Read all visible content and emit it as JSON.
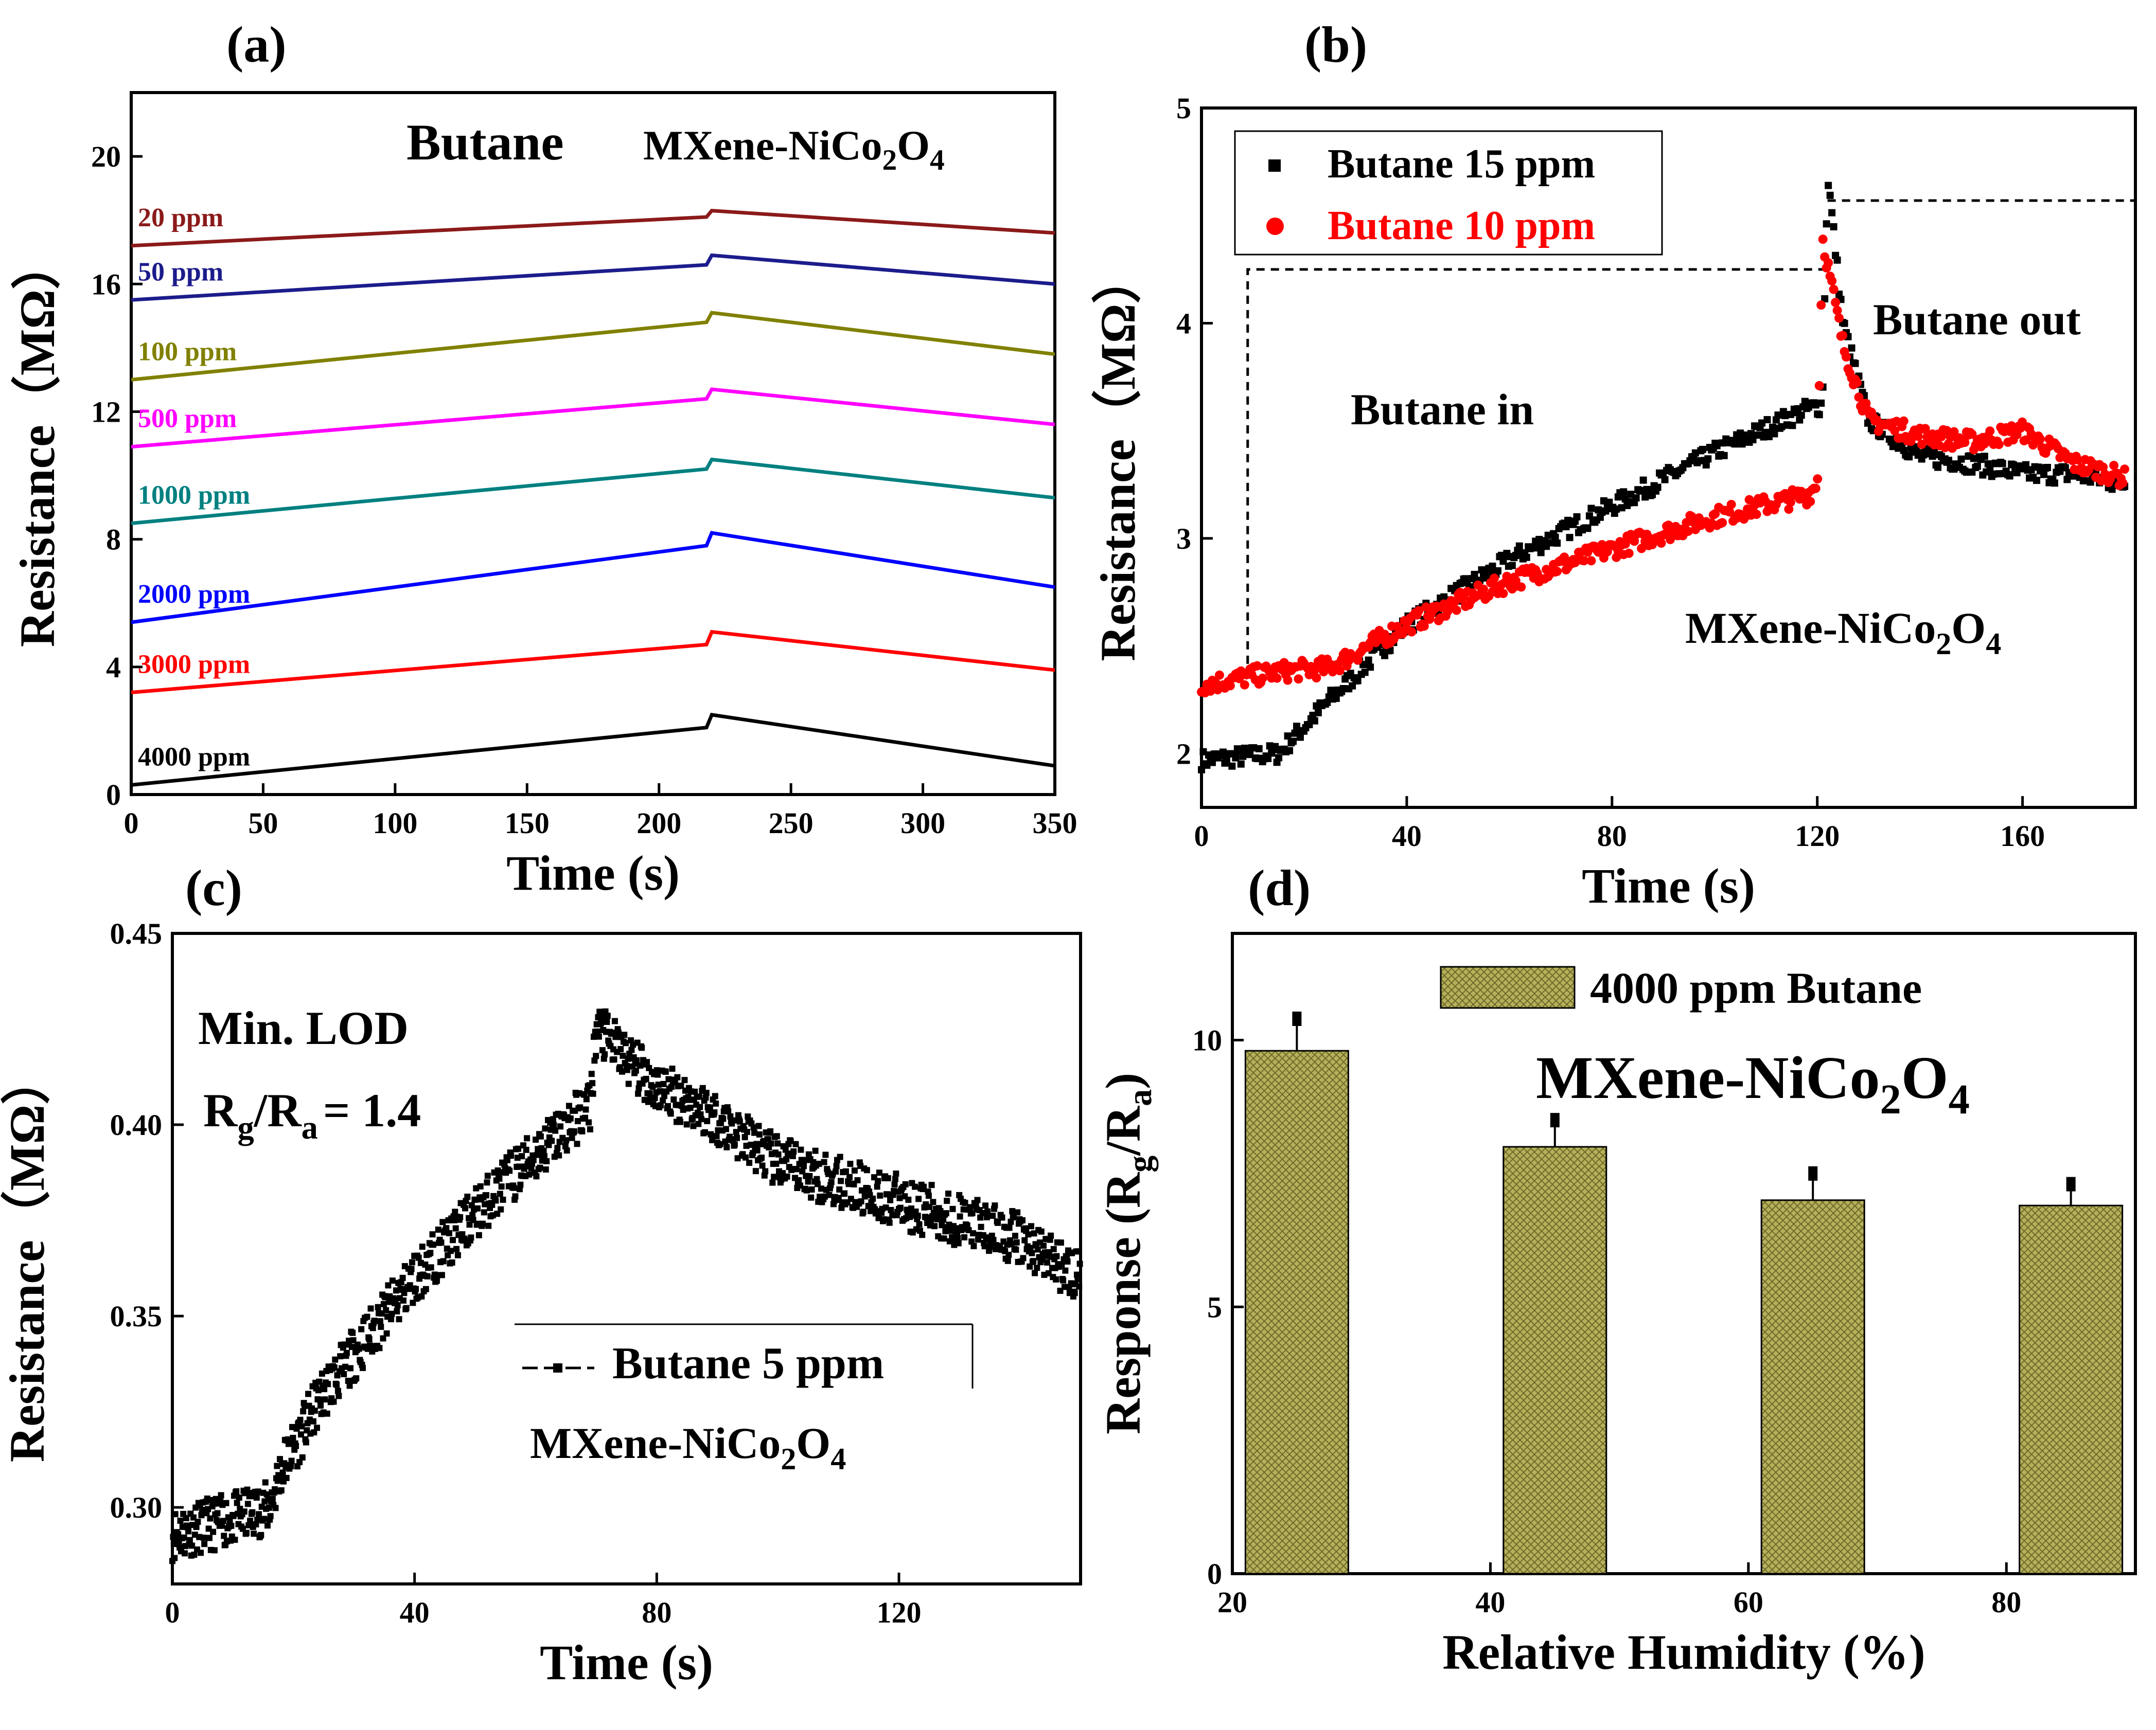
{
  "chart_data": [
    {
      "id": "a",
      "panel_label": "(a)",
      "type": "line",
      "title": "Butane",
      "material": "MXene-NiCo2O4",
      "xlabel": "Time (s)",
      "ylabel": "Resistance（MΩ）",
      "xlim": [
        0,
        350
      ],
      "ylim": [
        0,
        22
      ],
      "xticks": [
        0,
        50,
        100,
        150,
        200,
        250,
        300,
        350
      ],
      "yticks": [
        0,
        4,
        8,
        12,
        16,
        20
      ],
      "series": [
        {
          "name": "20 ppm",
          "color": "#8b1a1a",
          "x": [
            0,
            218,
            220,
            350
          ],
          "y": [
            17.2,
            18.1,
            18.3,
            17.6
          ]
        },
        {
          "name": "50 ppm",
          "color": "#1c1c8c",
          "x": [
            0,
            218,
            220,
            350
          ],
          "y": [
            15.5,
            16.6,
            16.9,
            16.0
          ]
        },
        {
          "name": "100 ppm",
          "color": "#808000",
          "x": [
            0,
            218,
            220,
            350
          ],
          "y": [
            13.0,
            14.8,
            15.1,
            13.8
          ]
        },
        {
          "name": "500 ppm",
          "color": "#ff00ff",
          "x": [
            0,
            218,
            220,
            350
          ],
          "y": [
            10.9,
            12.4,
            12.7,
            11.6
          ]
        },
        {
          "name": "1000 ppm",
          "color": "#008080",
          "x": [
            0,
            218,
            220,
            350
          ],
          "y": [
            8.5,
            10.2,
            10.5,
            9.3
          ]
        },
        {
          "name": "2000 ppm",
          "color": "#0000ff",
          "x": [
            0,
            218,
            220,
            350
          ],
          "y": [
            5.4,
            7.8,
            8.2,
            6.5
          ]
        },
        {
          "name": "3000 ppm",
          "color": "#ff0000",
          "x": [
            0,
            218,
            220,
            350
          ],
          "y": [
            3.2,
            4.7,
            5.1,
            3.9
          ]
        },
        {
          "name": "4000 ppm",
          "color": "#000000",
          "x": [
            0,
            218,
            220,
            350
          ],
          "y": [
            0.3,
            2.1,
            2.5,
            0.9
          ]
        }
      ]
    },
    {
      "id": "b",
      "panel_label": "(b)",
      "type": "scatter",
      "material": "MXene-NiCo2O4",
      "xlabel": "Time (s)",
      "ylabel": "Resistance（MΩ）",
      "xlim": [
        0,
        182
      ],
      "ylim": [
        1.75,
        5.0
      ],
      "xticks": [
        0,
        40,
        80,
        120,
        160
      ],
      "yticks": [
        2,
        3,
        4,
        5
      ],
      "annotations": [
        "Butane in",
        "Butane out"
      ],
      "series": [
        {
          "name": "Butane 15 ppm",
          "color": "#000000",
          "x": [
            0,
            15,
            25,
            40,
            60,
            80,
            100,
            118,
            121,
            122,
            125,
            130,
            140,
            150,
            160,
            170,
            180
          ],
          "y": [
            1.97,
            2.0,
            2.25,
            2.6,
            2.9,
            3.15,
            3.4,
            3.6,
            3.62,
            4.7,
            4.0,
            3.55,
            3.38,
            3.35,
            3.3,
            3.3,
            3.25
          ]
        },
        {
          "name": "Butane 10 ppm",
          "color": "#ff0000",
          "x": [
            0,
            15,
            25,
            40,
            60,
            80,
            100,
            118,
            120,
            121,
            125,
            130,
            140,
            150,
            160,
            170,
            180
          ],
          "y": [
            2.32,
            2.38,
            2.4,
            2.6,
            2.8,
            2.95,
            3.1,
            3.2,
            3.25,
            4.4,
            3.9,
            3.55,
            3.48,
            3.45,
            3.5,
            3.35,
            3.28
          ]
        }
      ]
    },
    {
      "id": "c",
      "panel_label": "(c)",
      "type": "scatter",
      "material": "MXene-NiCo2O4",
      "xlabel": "Time (s)",
      "ylabel": "Resistance（MΩ）",
      "xlim": [
        0,
        150
      ],
      "ylim": [
        0.28,
        0.45
      ],
      "xticks": [
        0,
        40,
        80,
        120
      ],
      "yticks": [
        0.3,
        0.35,
        0.4,
        0.45
      ],
      "ytick_labels": [
        "0.30",
        "0.35",
        "0.40",
        "0.45"
      ],
      "annotation_line1": "Min. LOD",
      "annotation_line2_prefix": "R",
      "annotation_line2_sub_g": "g",
      "annotation_line2_mid": "/R",
      "annotation_line2_sub_a": "a",
      "annotation_line2_suffix": "= 1.4",
      "series": [
        {
          "name": "Butane 5 ppm",
          "color": "#000000",
          "x": [
            0,
            10,
            16,
            18,
            25,
            40,
            55,
            69,
            70,
            80,
            87,
            100,
            120,
            140,
            150
          ],
          "y": [
            0.293,
            0.297,
            0.3,
            0.31,
            0.33,
            0.36,
            0.385,
            0.405,
            0.425,
            0.41,
            0.405,
            0.39,
            0.38,
            0.37,
            0.36
          ]
        }
      ]
    },
    {
      "id": "d",
      "panel_label": "(d)",
      "type": "bar",
      "title": "MXene-NiCo2O4",
      "xlabel": "Relative Humidity (%)",
      "ylabel_prefix": "Response (R",
      "ylabel_sub_g": "g",
      "ylabel_mid": "/R",
      "ylabel_sub_a": "a",
      "ylabel_suffix": ")",
      "xlim": [
        20,
        90
      ],
      "ylim": [
        0,
        12
      ],
      "xticks": [
        20,
        40,
        60,
        80
      ],
      "yticks": [
        0,
        5,
        10
      ],
      "categories": [
        25,
        45,
        65,
        85
      ],
      "series": [
        {
          "name": "4000 ppm Butane",
          "color": "#b5b05a",
          "values": [
            9.8,
            8.0,
            7.0,
            6.9
          ],
          "error_tops": [
            10.4,
            8.5,
            7.5,
            7.3
          ]
        }
      ]
    }
  ],
  "labels": {
    "a_title": "Butane",
    "a_mat": "MXene-NiCo",
    "b_mat": "MXene-NiCo",
    "c_mat": "MXene-NiCo",
    "d_mat": "MXene-NiCo",
    "sub_2": "2",
    "sub_4": "4",
    "o": "O",
    "b_in": "Butane in",
    "b_out": "Butane out"
  }
}
